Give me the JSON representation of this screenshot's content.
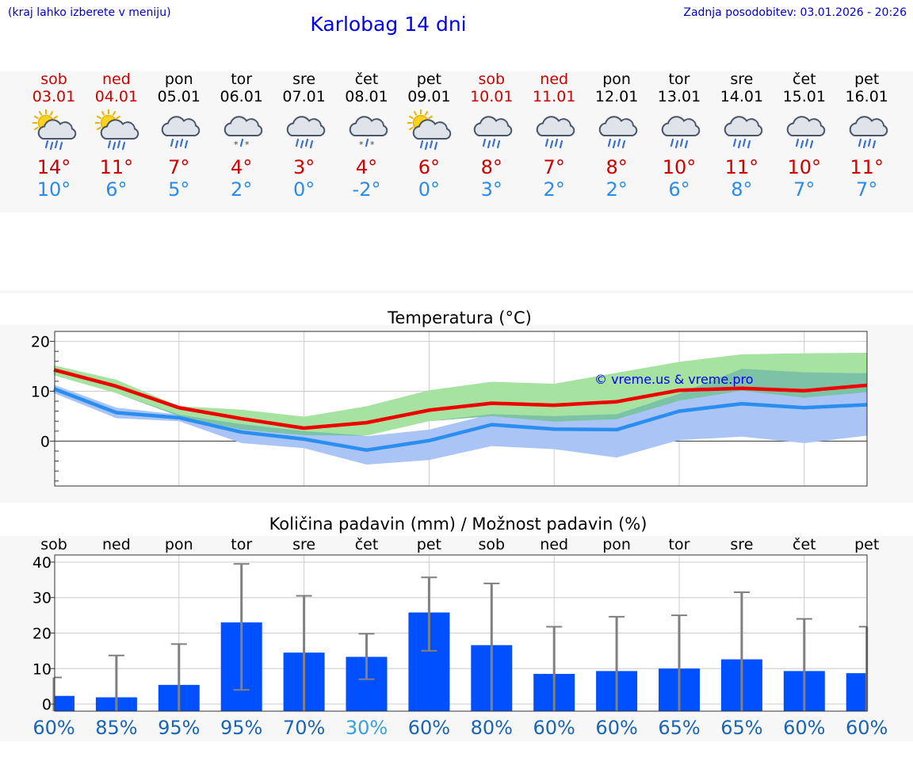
{
  "header": {
    "left_note": "(kraj lahko izberete v meniju)",
    "title": "Karlobag 14 dni",
    "updated": "Zadnja posodobitev: 03.01.2026 - 20:26"
  },
  "days": [
    {
      "name": "sob",
      "date": "03.01",
      "weekend": true,
      "icon": "sun-cloud-rain-icon",
      "tmax": "14°",
      "tmin": "10°"
    },
    {
      "name": "ned",
      "date": "04.01",
      "weekend": true,
      "icon": "sun-cloud-rain-icon",
      "tmax": "11°",
      "tmin": "6°"
    },
    {
      "name": "pon",
      "date": "05.01",
      "weekend": false,
      "icon": "cloud-rain-icon",
      "tmax": "7°",
      "tmin": "5°"
    },
    {
      "name": "tor",
      "date": "06.01",
      "weekend": false,
      "icon": "cloud-sleet-icon",
      "tmax": "4°",
      "tmin": "2°"
    },
    {
      "name": "sre",
      "date": "07.01",
      "weekend": false,
      "icon": "cloud-rain-icon",
      "tmax": "3°",
      "tmin": "0°"
    },
    {
      "name": "čet",
      "date": "08.01",
      "weekend": false,
      "icon": "cloud-sleet-icon",
      "tmax": "4°",
      "tmin": "-2°"
    },
    {
      "name": "pet",
      "date": "09.01",
      "weekend": false,
      "icon": "sun-cloud-rain-icon",
      "tmax": "6°",
      "tmin": "0°"
    },
    {
      "name": "sob",
      "date": "10.01",
      "weekend": true,
      "icon": "cloud-rain-icon",
      "tmax": "8°",
      "tmin": "3°"
    },
    {
      "name": "ned",
      "date": "11.01",
      "weekend": true,
      "icon": "cloud-rain-icon",
      "tmax": "7°",
      "tmin": "2°"
    },
    {
      "name": "pon",
      "date": "12.01",
      "weekend": false,
      "icon": "cloud-rain-icon",
      "tmax": "8°",
      "tmin": "2°"
    },
    {
      "name": "tor",
      "date": "13.01",
      "weekend": false,
      "icon": "cloud-rain-icon",
      "tmax": "10°",
      "tmin": "6°"
    },
    {
      "name": "sre",
      "date": "14.01",
      "weekend": false,
      "icon": "cloud-rain-icon",
      "tmax": "11°",
      "tmin": "8°"
    },
    {
      "name": "čet",
      "date": "15.01",
      "weekend": false,
      "icon": "cloud-rain-icon",
      "tmax": "10°",
      "tmin": "7°"
    },
    {
      "name": "pet",
      "date": "16.01",
      "weekend": false,
      "icon": "cloud-rain-icon",
      "tmax": "11°",
      "tmin": "7°"
    }
  ],
  "colors": {
    "max_line": "#ee0000",
    "min_line": "#2a8ef0",
    "max_band": "#a6e3a1",
    "overlap_band": "#7cc3a5",
    "min_band": "#a9c4f5",
    "bar": "#0050ff",
    "whisker": "#808080",
    "pct_dark": "#1a64b4",
    "pct_light": "#3aa0d8",
    "weekend_text": "#cc0000"
  },
  "chart_data": [
    {
      "type": "line",
      "title": "Temperatura (°C)",
      "watermark": "© vreme.us & vreme.pro",
      "x_count": 14,
      "ylim": [
        -9,
        22
      ],
      "yticks": [
        0,
        10,
        20
      ],
      "series": [
        {
          "name": "max",
          "values": [
            14.3,
            11,
            6.7,
            4.5,
            2.6,
            3.7,
            6.2,
            7.6,
            7.2,
            7.9,
            10.2,
            10.6,
            10.1,
            11.2
          ]
        },
        {
          "name": "min",
          "values": [
            10.5,
            5.7,
            4.7,
            1.8,
            0.4,
            -1.8,
            0.1,
            3.3,
            2.4,
            2.3,
            6.0,
            7.5,
            6.7,
            7.3
          ]
        },
        {
          "name": "max_upper",
          "values": [
            15.2,
            12.3,
            7.0,
            6.3,
            4.9,
            7.0,
            10.2,
            11.9,
            11.5,
            13.7,
            15.9,
            17.4,
            17.6,
            17.7
          ]
        },
        {
          "name": "max_lower",
          "values": [
            13.2,
            9.6,
            5.0,
            2.3,
            1.2,
            1.1,
            4.0,
            5.0,
            3.9,
            4.4,
            8.1,
            10.1,
            8.7,
            9.8
          ]
        },
        {
          "name": "min_upper",
          "values": [
            11.3,
            6.7,
            5.3,
            3.4,
            2.0,
            1.0,
            2.3,
            5.4,
            5.0,
            5.4,
            9.5,
            14.5,
            13.8,
            13.6
          ]
        },
        {
          "name": "min_lower",
          "values": [
            9.6,
            4.6,
            4.0,
            -0.4,
            -1.4,
            -4.7,
            -3.8,
            -1.0,
            -1.6,
            -3.3,
            0.2,
            0.9,
            -0.4,
            1.1
          ]
        }
      ]
    },
    {
      "type": "bar",
      "title": "Količina padavin (mm) / Možnost padavin (%)",
      "categories": [
        "sob",
        "ned",
        "pon",
        "tor",
        "sre",
        "čet",
        "pet",
        "sob",
        "ned",
        "pon",
        "tor",
        "sre",
        "čet",
        "pet"
      ],
      "ylim": [
        -2,
        42
      ],
      "yticks": [
        0,
        10,
        20,
        30,
        40
      ],
      "values": [
        2.3,
        1.9,
        5.4,
        23.0,
        14.5,
        13.3,
        25.8,
        16.6,
        8.5,
        9.3,
        10.0,
        12.6,
        9.3,
        8.7
      ],
      "err_low": [
        0,
        0,
        0,
        4,
        0,
        7,
        15,
        0,
        0,
        0,
        0,
        0,
        0,
        0
      ],
      "err_high": [
        7.5,
        13.7,
        16.9,
        39.5,
        30.5,
        19.8,
        35.7,
        34.0,
        21.8,
        24.6,
        25.0,
        31.5,
        24.0,
        21.8
      ],
      "probability": [
        "60%",
        "85%",
        "95%",
        "95%",
        "70%",
        "30%",
        "60%",
        "80%",
        "60%",
        "60%",
        "65%",
        "65%",
        "60%",
        "60%"
      ]
    }
  ]
}
